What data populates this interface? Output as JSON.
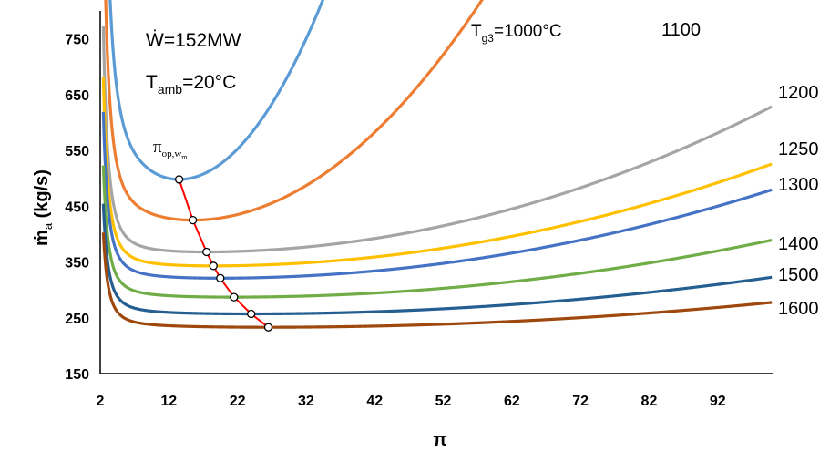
{
  "chart_data": {
    "type": "line",
    "title": "",
    "xlabel": "π",
    "ylabel": "ṁ",
    "ylabel_sub": "a",
    "ylabel_unit": " (kg/s)",
    "xlim": [
      2,
      100
    ],
    "ylim": [
      150,
      800
    ],
    "x_ticks": [
      "2",
      "12",
      "22",
      "32",
      "42",
      "52",
      "62",
      "72",
      "82",
      "92"
    ],
    "y_ticks": [
      "150",
      "250",
      "350",
      "450",
      "550",
      "650",
      "750"
    ],
    "grid": false,
    "annotations": {
      "power": "Ẇ=152MW",
      "tamb_main": "T",
      "tamb_sub": "amb",
      "tamb_value": "=20°C",
      "tg3_main": "T",
      "tg3_sub": "g3",
      "tg3_value": "=1000°C",
      "optimum_main": "π",
      "optimum_sub": "op,w",
      "optimum_subsub": "m"
    },
    "series": [
      {
        "name": "1000",
        "color": "#5B9BD5",
        "min_x": 13.5,
        "min_y": 498,
        "k": 0.72,
        "a": 2300
      },
      {
        "name": "1100",
        "color": "#ED7D31",
        "min_x": 15.5,
        "min_y": 425,
        "k": 0.22,
        "a": 1500
      },
      {
        "name": "1200",
        "color": "#A5A5A5",
        "min_x": 17.5,
        "min_y": 368,
        "k": 0.038,
        "a": 1000
      },
      {
        "name": "1250",
        "color": "#FFC000",
        "min_x": 18.5,
        "min_y": 343,
        "k": 0.0273,
        "a": 830
      },
      {
        "name": "1300",
        "color": "#4472C4",
        "min_x": 19.5,
        "min_y": 321,
        "k": 0.0243,
        "a": 720
      },
      {
        "name": "1400",
        "color": "#70AD47",
        "min_x": 21.5,
        "min_y": 287,
        "k": 0.0165,
        "a": 560
      },
      {
        "name": "1500",
        "color": "#255E91",
        "min_x": 24.0,
        "min_y": 257,
        "k": 0.0113,
        "a": 460
      },
      {
        "name": "1600",
        "color": "#9E480E",
        "min_x": 26.5,
        "min_y": 233,
        "k": 0.0082,
        "a": 390
      }
    ],
    "optimum_line": {
      "color": "#FF0000",
      "points": [
        {
          "x": 13.5,
          "y": 498
        },
        {
          "x": 15.5,
          "y": 425
        },
        {
          "x": 17.5,
          "y": 368
        },
        {
          "x": 18.5,
          "y": 343
        },
        {
          "x": 19.5,
          "y": 321
        },
        {
          "x": 21.5,
          "y": 287
        },
        {
          "x": 24.0,
          "y": 257
        },
        {
          "x": 26.5,
          "y": 233
        }
      ]
    }
  }
}
